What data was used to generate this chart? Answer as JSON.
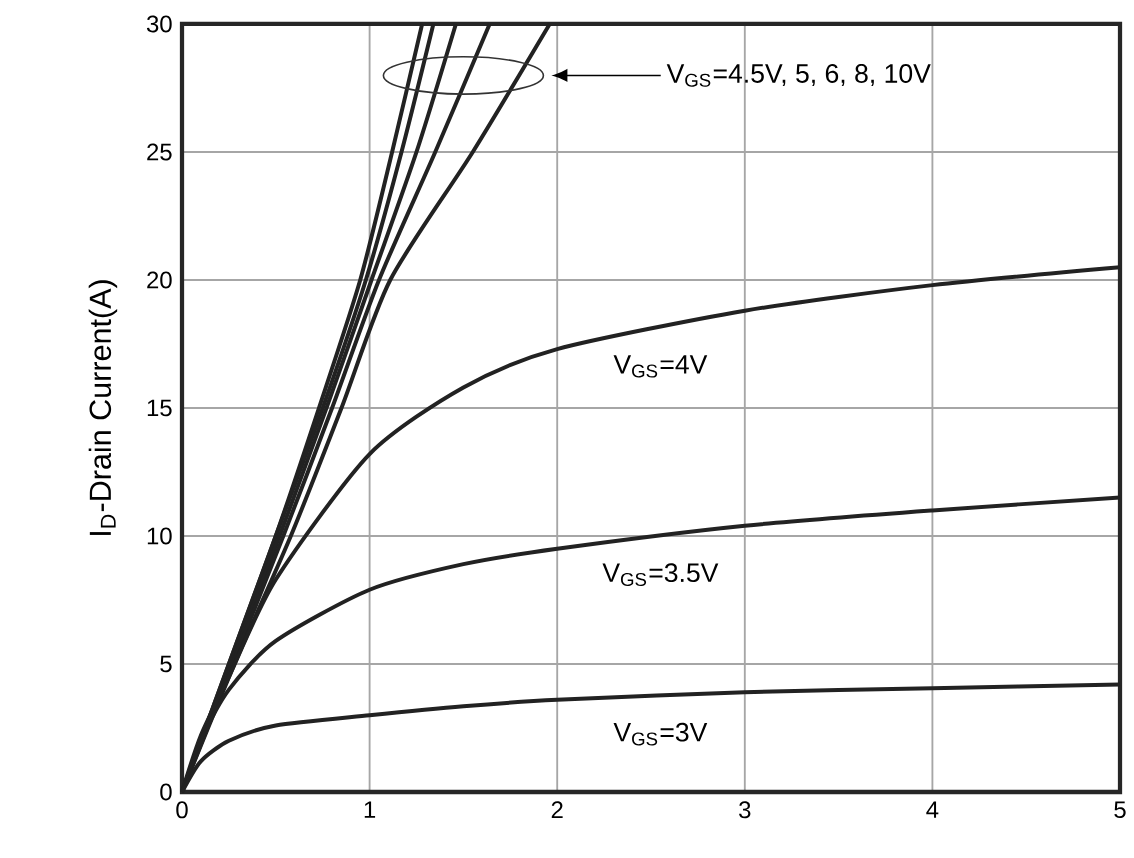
{
  "chart_data": {
    "type": "line",
    "ylabel": "I$_{D}$-Drain Current(A)",
    "xlim": [
      0,
      5
    ],
    "ylim": [
      0,
      30
    ],
    "xticks": [
      0,
      1,
      2,
      3,
      4,
      5
    ],
    "yticks": [
      0,
      5,
      10,
      15,
      20,
      25,
      30
    ],
    "grid": true,
    "marker": "none",
    "line_style": "solid",
    "series": [
      {
        "color": "#222222",
        "x": [
          0,
          0.25,
          0.5,
          0.73,
          0.95,
          1.12,
          1.28
        ],
        "values": [
          0,
          5,
          10,
          15,
          20,
          25,
          30
        ]
      },
      {
        "color": "#222222",
        "x": [
          0,
          0.25,
          0.5,
          0.75,
          0.98,
          1.17,
          1.34
        ],
        "values": [
          0,
          5,
          10,
          15,
          20,
          25,
          30
        ]
      },
      {
        "color": "#222222",
        "x": [
          0,
          0.26,
          0.52,
          0.77,
          1.01,
          1.25,
          1.46
        ],
        "values": [
          0,
          5,
          10,
          15,
          20,
          25,
          30
        ]
      },
      {
        "color": "#222222",
        "x": [
          0,
          0.27,
          0.54,
          0.8,
          1.05,
          1.35,
          1.64
        ],
        "values": [
          0,
          5,
          10,
          15,
          20,
          25,
          30
        ]
      },
      {
        "color": "#222222",
        "x": [
          0,
          0.28,
          0.58,
          0.85,
          1.11,
          1.55,
          1.96
        ],
        "values": [
          0,
          5,
          10,
          15,
          20,
          25,
          30
        ]
      },
      {
        "name": "V$_{GS}$=4V",
        "color": "#222222",
        "x": [
          0,
          0.1,
          0.25,
          0.5,
          1,
          1.5,
          2,
          3,
          4,
          5
        ],
        "values": [
          0,
          2.2,
          4.5,
          8.3,
          13.2,
          15.8,
          17.3,
          18.8,
          19.8,
          20.5
        ]
      },
      {
        "name": "V$_{GS}$=3.5V",
        "color": "#222222",
        "x": [
          0,
          0.1,
          0.25,
          0.5,
          1,
          1.5,
          2,
          3,
          4,
          5
        ],
        "values": [
          0,
          2.0,
          4.0,
          5.9,
          7.9,
          8.9,
          9.5,
          10.4,
          11.0,
          11.5
        ]
      },
      {
        "name": "V$_{GS}$=3V",
        "color": "#222222",
        "x": [
          0,
          0.1,
          0.25,
          0.5,
          1,
          1.5,
          2,
          3,
          4,
          5
        ],
        "values": [
          0,
          1.2,
          2.0,
          2.6,
          3.0,
          3.35,
          3.6,
          3.9,
          4.05,
          4.2
        ]
      }
    ],
    "annotations": [
      "V$_{GS}$=4.5V, 5, 6, 8, 10V"
    ]
  }
}
